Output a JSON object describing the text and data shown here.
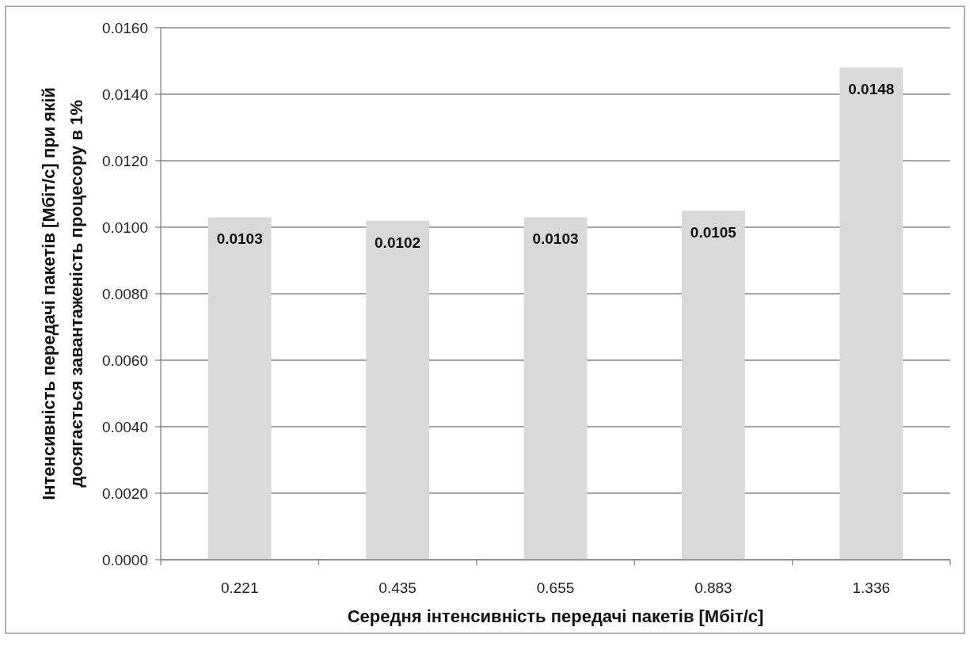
{
  "chart_data": {
    "type": "bar",
    "xlabel": "Середня інтенсивність передачі пакетів [Мбіт/с]",
    "ylabel": "Інтенсивність передачі пакетів [Мбіт/с] при якій\nдосягається завантаженість процесору в 1%",
    "categories": [
      "0.221",
      "0.435",
      "0.655",
      "0.883",
      "1.336"
    ],
    "values": [
      0.0103,
      0.0102,
      0.0103,
      0.0105,
      0.0148
    ],
    "color": "#d9d9d9",
    "ylim": [
      0,
      0.016
    ],
    "yticks": [
      "0.0000",
      "0.0020",
      "0.0040",
      "0.0060",
      "0.0080",
      "0.0100",
      "0.0120",
      "0.0140",
      "0.0160"
    ],
    "grid": "y",
    "data_labels": true
  }
}
